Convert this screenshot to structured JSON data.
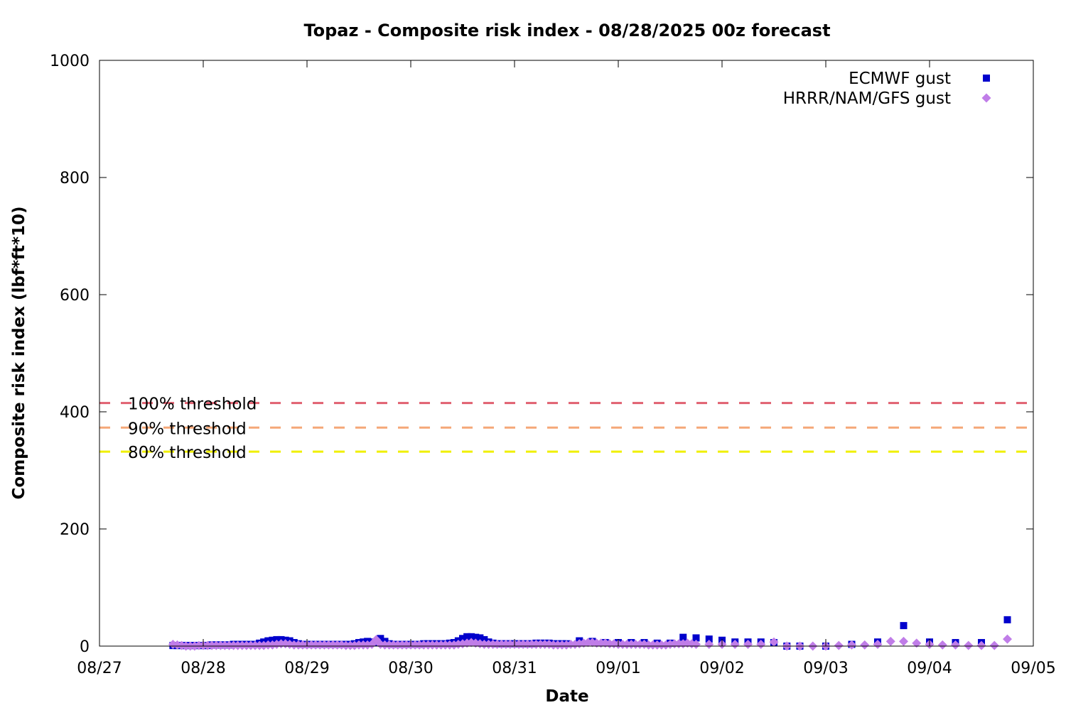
{
  "chart_data": {
    "type": "scatter",
    "title": "Topaz - Composite risk index - 08/28/2025 00z forecast",
    "xlabel": "Date",
    "ylabel": "Composite risk index (lbf*ft*10)",
    "x_ticks": [
      "08/27",
      "08/28",
      "08/29",
      "08/30",
      "08/31",
      "09/01",
      "09/02",
      "09/03",
      "09/04",
      "09/05"
    ],
    "x_unit": "days since 08/27",
    "xlim": [
      0,
      9
    ],
    "y_ticks": [
      "0",
      "200",
      "400",
      "600",
      "800",
      "1000"
    ],
    "ylim": [
      0,
      1000
    ],
    "legend_position": "top-right",
    "grid": false,
    "thresholds": [
      {
        "label": "100% threshold",
        "value": 415,
        "color": "#e06070"
      },
      {
        "label": "90% threshold",
        "value": 373,
        "color": "#f5a878"
      },
      {
        "label": "80% threshold",
        "value": 332,
        "color": "#f0f000"
      }
    ],
    "series": [
      {
        "name": "ECMWF gust",
        "marker": "square",
        "color": "#0000cc",
        "points": [
          [
            0.708,
            1
          ],
          [
            0.75,
            1
          ],
          [
            0.792,
            1
          ],
          [
            0.833,
            1
          ],
          [
            0.875,
            1
          ],
          [
            0.917,
            1
          ],
          [
            0.958,
            1
          ],
          [
            1.0,
            1
          ],
          [
            1.042,
            1
          ],
          [
            1.083,
            2
          ],
          [
            1.125,
            2
          ],
          [
            1.167,
            2
          ],
          [
            1.208,
            2
          ],
          [
            1.25,
            2
          ],
          [
            1.292,
            3
          ],
          [
            1.333,
            3
          ],
          [
            1.375,
            3
          ],
          [
            1.417,
            3
          ],
          [
            1.458,
            3
          ],
          [
            1.5,
            3
          ],
          [
            1.542,
            5
          ],
          [
            1.583,
            7
          ],
          [
            1.625,
            9
          ],
          [
            1.667,
            10
          ],
          [
            1.708,
            11
          ],
          [
            1.75,
            11
          ],
          [
            1.792,
            10
          ],
          [
            1.833,
            9
          ],
          [
            1.875,
            6
          ],
          [
            1.917,
            4
          ],
          [
            1.958,
            3
          ],
          [
            2.0,
            3
          ],
          [
            2.042,
            3
          ],
          [
            2.083,
            3
          ],
          [
            2.125,
            3
          ],
          [
            2.167,
            3
          ],
          [
            2.208,
            3
          ],
          [
            2.25,
            3
          ],
          [
            2.292,
            3
          ],
          [
            2.333,
            3
          ],
          [
            2.375,
            3
          ],
          [
            2.417,
            3
          ],
          [
            2.458,
            4
          ],
          [
            2.5,
            6
          ],
          [
            2.542,
            7
          ],
          [
            2.583,
            8
          ],
          [
            2.625,
            7
          ],
          [
            2.667,
            6
          ],
          [
            2.708,
            13
          ],
          [
            2.75,
            8
          ],
          [
            2.792,
            4
          ],
          [
            2.833,
            3
          ],
          [
            2.875,
            3
          ],
          [
            2.917,
            3
          ],
          [
            2.958,
            3
          ],
          [
            3.0,
            3
          ],
          [
            3.042,
            3
          ],
          [
            3.083,
            3
          ],
          [
            3.125,
            4
          ],
          [
            3.167,
            4
          ],
          [
            3.208,
            4
          ],
          [
            3.25,
            4
          ],
          [
            3.292,
            4
          ],
          [
            3.333,
            4
          ],
          [
            3.375,
            5
          ],
          [
            3.417,
            6
          ],
          [
            3.458,
            9
          ],
          [
            3.5,
            13
          ],
          [
            3.542,
            16
          ],
          [
            3.583,
            16
          ],
          [
            3.625,
            15
          ],
          [
            3.667,
            14
          ],
          [
            3.708,
            11
          ],
          [
            3.75,
            7
          ],
          [
            3.792,
            5
          ],
          [
            3.833,
            4
          ],
          [
            3.875,
            4
          ],
          [
            3.917,
            4
          ],
          [
            3.958,
            4
          ],
          [
            4.0,
            4
          ],
          [
            4.042,
            4
          ],
          [
            4.083,
            4
          ],
          [
            4.125,
            4
          ],
          [
            4.167,
            4
          ],
          [
            4.208,
            5
          ],
          [
            4.25,
            5
          ],
          [
            4.292,
            5
          ],
          [
            4.333,
            5
          ],
          [
            4.375,
            4
          ],
          [
            4.417,
            4
          ],
          [
            4.458,
            4
          ],
          [
            4.5,
            4
          ],
          [
            4.625,
            9
          ],
          [
            4.75,
            8
          ],
          [
            4.875,
            6
          ],
          [
            5.0,
            6
          ],
          [
            5.125,
            6
          ],
          [
            5.25,
            6
          ],
          [
            5.375,
            5
          ],
          [
            5.5,
            5
          ],
          [
            5.625,
            15
          ],
          [
            5.75,
            14
          ],
          [
            5.875,
            12
          ],
          [
            6.0,
            10
          ],
          [
            6.125,
            7
          ],
          [
            6.25,
            7
          ],
          [
            6.375,
            7
          ],
          [
            6.5,
            6
          ],
          [
            6.625,
            0
          ],
          [
            6.75,
            0
          ],
          [
            7.0,
            0
          ],
          [
            7.25,
            3
          ],
          [
            7.5,
            7
          ],
          [
            7.75,
            35
          ],
          [
            8.0,
            7
          ],
          [
            8.25,
            6
          ],
          [
            8.5,
            6
          ],
          [
            8.75,
            45
          ]
        ]
      },
      {
        "name": "HRRR/NAM/GFS gust",
        "marker": "diamond",
        "color": "#c07de8",
        "points": [
          [
            0.708,
            3
          ],
          [
            0.75,
            2
          ],
          [
            0.792,
            1
          ],
          [
            0.833,
            0
          ],
          [
            0.875,
            0
          ],
          [
            0.917,
            0
          ],
          [
            0.958,
            1
          ],
          [
            1.0,
            1
          ],
          [
            1.042,
            1
          ],
          [
            1.083,
            1
          ],
          [
            1.125,
            1
          ],
          [
            1.167,
            1
          ],
          [
            1.208,
            1
          ],
          [
            1.25,
            1
          ],
          [
            1.292,
            1
          ],
          [
            1.333,
            1
          ],
          [
            1.375,
            1
          ],
          [
            1.417,
            1
          ],
          [
            1.458,
            1
          ],
          [
            1.5,
            1
          ],
          [
            1.542,
            1
          ],
          [
            1.583,
            1
          ],
          [
            1.625,
            2
          ],
          [
            1.667,
            2
          ],
          [
            1.708,
            3
          ],
          [
            1.75,
            4
          ],
          [
            1.792,
            4
          ],
          [
            1.833,
            3
          ],
          [
            1.875,
            2
          ],
          [
            1.917,
            2
          ],
          [
            1.958,
            2
          ],
          [
            2.0,
            2
          ],
          [
            2.042,
            2
          ],
          [
            2.083,
            2
          ],
          [
            2.125,
            2
          ],
          [
            2.167,
            2
          ],
          [
            2.208,
            2
          ],
          [
            2.25,
            2
          ],
          [
            2.292,
            2
          ],
          [
            2.333,
            2
          ],
          [
            2.375,
            1
          ],
          [
            2.417,
            1
          ],
          [
            2.458,
            1
          ],
          [
            2.5,
            2
          ],
          [
            2.542,
            2
          ],
          [
            2.583,
            2
          ],
          [
            2.625,
            3
          ],
          [
            2.667,
            11
          ],
          [
            2.708,
            3
          ],
          [
            2.75,
            2
          ],
          [
            2.792,
            2
          ],
          [
            2.833,
            2
          ],
          [
            2.875,
            2
          ],
          [
            2.917,
            2
          ],
          [
            2.958,
            2
          ],
          [
            3.0,
            2
          ],
          [
            3.042,
            2
          ],
          [
            3.083,
            2
          ],
          [
            3.125,
            2
          ],
          [
            3.167,
            2
          ],
          [
            3.208,
            2
          ],
          [
            3.25,
            2
          ],
          [
            3.292,
            2
          ],
          [
            3.333,
            2
          ],
          [
            3.375,
            2
          ],
          [
            3.417,
            2
          ],
          [
            3.458,
            3
          ],
          [
            3.5,
            4
          ],
          [
            3.542,
            5
          ],
          [
            3.583,
            6
          ],
          [
            3.625,
            5
          ],
          [
            3.667,
            4
          ],
          [
            3.708,
            3
          ],
          [
            3.75,
            3
          ],
          [
            3.792,
            3
          ],
          [
            3.833,
            3
          ],
          [
            3.875,
            3
          ],
          [
            3.917,
            3
          ],
          [
            3.958,
            3
          ],
          [
            4.0,
            3
          ],
          [
            4.042,
            3
          ],
          [
            4.083,
            3
          ],
          [
            4.125,
            3
          ],
          [
            4.167,
            3
          ],
          [
            4.208,
            3
          ],
          [
            4.25,
            3
          ],
          [
            4.292,
            3
          ],
          [
            4.333,
            3
          ],
          [
            4.375,
            2
          ],
          [
            4.417,
            2
          ],
          [
            4.458,
            2
          ],
          [
            4.5,
            2
          ],
          [
            4.542,
            3
          ],
          [
            4.583,
            3
          ],
          [
            4.625,
            4
          ],
          [
            4.667,
            5
          ],
          [
            4.708,
            6
          ],
          [
            4.75,
            6
          ],
          [
            4.792,
            5
          ],
          [
            4.833,
            5
          ],
          [
            4.875,
            5
          ],
          [
            4.917,
            4
          ],
          [
            4.958,
            4
          ],
          [
            5.0,
            3
          ],
          [
            5.042,
            3
          ],
          [
            5.083,
            3
          ],
          [
            5.125,
            3
          ],
          [
            5.167,
            3
          ],
          [
            5.208,
            3
          ],
          [
            5.25,
            3
          ],
          [
            5.292,
            2
          ],
          [
            5.333,
            2
          ],
          [
            5.375,
            2
          ],
          [
            5.417,
            2
          ],
          [
            5.458,
            2
          ],
          [
            5.5,
            3
          ],
          [
            5.542,
            4
          ],
          [
            5.583,
            4
          ],
          [
            5.625,
            4
          ],
          [
            5.667,
            5
          ],
          [
            5.708,
            4
          ],
          [
            5.75,
            3
          ],
          [
            5.875,
            3
          ],
          [
            6.0,
            3
          ],
          [
            6.125,
            3
          ],
          [
            6.25,
            3
          ],
          [
            6.375,
            3
          ],
          [
            6.5,
            7
          ],
          [
            6.625,
            0
          ],
          [
            6.75,
            0
          ],
          [
            6.875,
            0
          ],
          [
            7.0,
            0
          ],
          [
            7.125,
            1
          ],
          [
            7.25,
            2
          ],
          [
            7.375,
            2
          ],
          [
            7.5,
            3
          ],
          [
            7.625,
            8
          ],
          [
            7.75,
            8
          ],
          [
            7.875,
            5
          ],
          [
            8.0,
            3
          ],
          [
            8.125,
            2
          ],
          [
            8.25,
            2
          ],
          [
            8.375,
            1
          ],
          [
            8.5,
            1
          ],
          [
            8.625,
            1
          ],
          [
            8.75,
            12
          ]
        ]
      }
    ]
  }
}
